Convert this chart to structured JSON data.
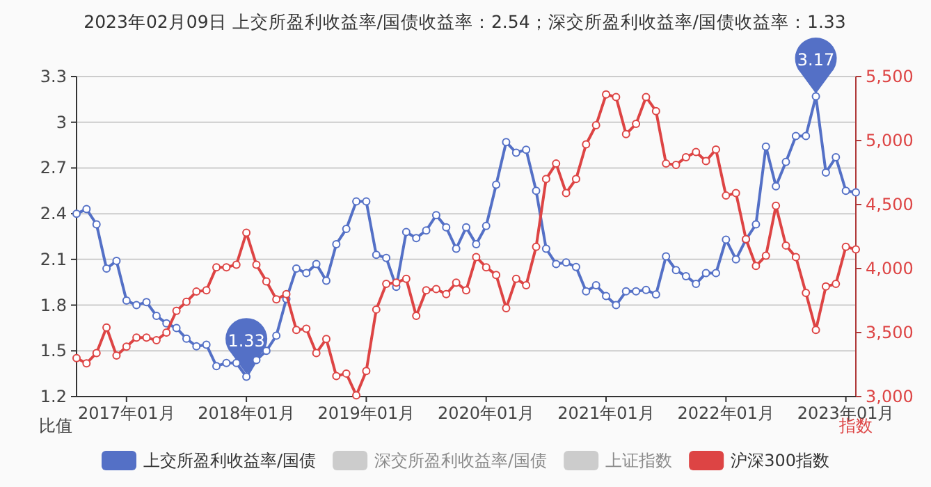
{
  "chart_data": {
    "type": "line",
    "title": "2023年02月09日 上交所盈利收益率/国债收益率：2.54；深交所盈利收益率/国债收益率：1.33",
    "ylabel": "比值",
    "y2label": "指数",
    "categories": [
      null,
      null,
      null,
      null,
      null,
      "2017年01月",
      null,
      null,
      null,
      null,
      null,
      null,
      null,
      null,
      null,
      null,
      null,
      "2018年01月",
      null,
      null,
      null,
      null,
      null,
      null,
      null,
      null,
      null,
      null,
      null,
      "2019年01月",
      null,
      null,
      null,
      null,
      null,
      null,
      null,
      null,
      null,
      null,
      null,
      "2020年01月",
      null,
      null,
      null,
      null,
      null,
      null,
      null,
      null,
      null,
      null,
      null,
      "2021年01月",
      null,
      null,
      null,
      null,
      null,
      null,
      null,
      null,
      null,
      null,
      null,
      "2022年01月",
      null,
      null,
      null,
      null,
      null,
      null,
      null,
      null,
      null,
      null,
      null,
      "2023年01月",
      null
    ],
    "ylim": [
      1.2,
      3.3
    ],
    "yticks": [
      1.2,
      1.5,
      1.8,
      2.1,
      2.4,
      2.7,
      3,
      3.3
    ],
    "y2lim": [
      3000,
      5500
    ],
    "y2ticks": [
      {
        "value": 3000,
        "label": "3,000"
      },
      {
        "value": 3500,
        "label": "3,500"
      },
      {
        "value": 4000,
        "label": "4,000"
      },
      {
        "value": 4500,
        "label": "4,500"
      },
      {
        "value": 5000,
        "label": "5,000"
      },
      {
        "value": 5500,
        "label": "5,500"
      }
    ],
    "grid": "y",
    "legend": "bottom",
    "marker": "circle",
    "series": [
      {
        "name": "上交所盈利收益率/国债",
        "color": "#5470c6",
        "values": [
          2.4,
          2.43,
          2.33,
          2.04,
          2.09,
          1.83,
          1.8,
          1.82,
          1.73,
          1.68,
          1.65,
          1.58,
          1.53,
          1.54,
          1.4,
          1.42,
          1.42,
          1.33,
          1.44,
          1.5,
          1.6,
          1.84,
          2.04,
          2.01,
          2.07,
          1.96,
          2.2,
          2.3,
          2.48,
          2.48,
          2.13,
          2.11,
          1.92,
          2.28,
          2.24,
          2.29,
          2.39,
          2.31,
          2.17,
          2.31,
          2.2,
          2.32,
          2.59,
          2.87,
          2.8,
          2.82,
          2.55,
          2.17,
          2.07,
          2.08,
          2.05,
          1.89,
          1.93,
          1.86,
          1.8,
          1.89,
          1.89,
          1.9,
          1.87,
          2.12,
          2.03,
          1.99,
          1.94,
          2.01,
          2.01,
          2.23,
          2.1,
          2.23,
          2.33,
          2.84,
          2.58,
          2.74,
          2.91,
          2.91,
          3.17,
          2.67,
          2.77,
          2.55,
          2.54
        ],
        "value_labels": [
          null,
          null,
          null,
          null,
          null,
          null,
          null,
          null,
          null,
          null,
          null,
          null,
          null,
          null,
          null,
          null,
          null,
          "1.33",
          null,
          null,
          null,
          null,
          null,
          null,
          null,
          null,
          null,
          null,
          null,
          null,
          null,
          null,
          null,
          null,
          null,
          null,
          null,
          null,
          null,
          null,
          null,
          null,
          null,
          null,
          null,
          null,
          null,
          null,
          null,
          null,
          null,
          null,
          null,
          null,
          null,
          null,
          null,
          null,
          null,
          null,
          null,
          null,
          null,
          null,
          null,
          null,
          null,
          null,
          null,
          null,
          null,
          null,
          null,
          null,
          "3.17",
          null,
          null,
          null,
          null
        ]
      },
      {
        "name": "深交所盈利收益率/国债",
        "color": "#cccccc",
        "values": [
          null,
          null,
          null,
          null,
          null,
          null,
          null,
          null,
          null,
          null,
          null,
          null,
          null,
          null,
          null,
          null,
          null,
          null,
          null,
          null,
          null,
          null,
          null,
          null,
          null,
          null,
          null,
          null,
          null,
          null,
          null,
          null,
          null,
          null,
          null,
          null,
          null,
          null,
          null,
          null,
          null,
          null,
          null,
          null,
          null,
          null,
          null,
          null,
          null,
          null,
          null,
          null,
          null,
          null,
          null,
          null,
          null,
          null,
          null,
          null,
          null,
          null,
          null,
          null,
          null,
          null,
          null,
          null,
          null,
          null,
          null,
          null,
          null,
          null,
          null,
          null,
          null,
          null,
          null
        ]
      },
      {
        "name": "上证指数",
        "color": "#cccccc",
        "axis": "y2",
        "values": [
          null,
          null,
          null,
          null,
          null,
          null,
          null,
          null,
          null,
          null,
          null,
          null,
          null,
          null,
          null,
          null,
          null,
          null,
          null,
          null,
          null,
          null,
          null,
          null,
          null,
          null,
          null,
          null,
          null,
          null,
          null,
          null,
          null,
          null,
          null,
          null,
          null,
          null,
          null,
          null,
          null,
          null,
          null,
          null,
          null,
          null,
          null,
          null,
          null,
          null,
          null,
          null,
          null,
          null,
          null,
          null,
          null,
          null,
          null,
          null,
          null,
          null,
          null,
          null,
          null,
          null,
          null,
          null,
          null,
          null,
          null,
          null,
          null,
          null,
          null,
          null,
          null,
          null,
          null
        ]
      },
      {
        "name": "沪深300指数",
        "color": "#dd4444",
        "axis": "y2",
        "values": [
          3300,
          3260,
          3340,
          3540,
          3320,
          3390,
          3460,
          3460,
          3440,
          3500,
          3670,
          3740,
          3820,
          3830,
          4010,
          4010,
          4030,
          4280,
          4030,
          3900,
          3760,
          3800,
          3520,
          3530,
          3340,
          3450,
          3160,
          3180,
          3010,
          3200,
          3680,
          3880,
          3890,
          3920,
          3630,
          3830,
          3840,
          3800,
          3890,
          3830,
          4090,
          4010,
          3950,
          3690,
          3920,
          3870,
          4170,
          4700,
          4820,
          4590,
          4700,
          4970,
          5120,
          5360,
          5340,
          5050,
          5130,
          5340,
          5230,
          4820,
          4810,
          4870,
          4910,
          4840,
          4930,
          4570,
          4590,
          4230,
          4020,
          4100,
          4490,
          4180,
          4090,
          3810,
          3520,
          3860,
          3880,
          4170,
          4150
        ]
      }
    ]
  }
}
